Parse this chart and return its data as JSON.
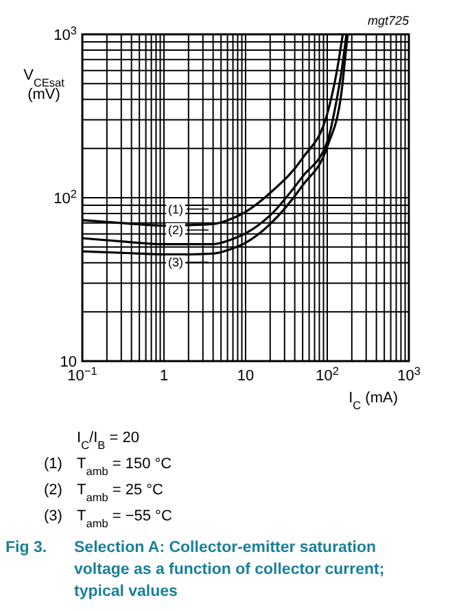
{
  "chart_data": {
    "type": "line",
    "title": "Fig 3.  Selection A: Collector-emitter saturation voltage as a function of collector current; typical values",
    "xlabel": "I$_{C}$ (mA)",
    "ylabel": "V$_{CEsat}$ (mV)",
    "log": "xy",
    "grid": true,
    "legend": "left",
    "xlim": [
      0.1,
      1000
    ],
    "ylim": [
      10,
      1000
    ],
    "xticks": [
      {
        "value": 0.1,
        "label": "10$^{−1}$"
      },
      1,
      10,
      {
        "value": 100,
        "label": "10$^{2}$"
      },
      {
        "value": 1000,
        "label": "10$^{3}$"
      }
    ],
    "yticks": [
      10,
      {
        "value": 100,
        "label": "10$^{2}$"
      },
      {
        "value": 1000,
        "label": "10$^{3}$"
      }
    ],
    "series": [
      {
        "name": "(1)",
        "color": "#000000",
        "x": [
          0.1,
          0.3,
          1,
          2,
          4,
          7,
          10,
          20,
          50,
          100,
          130,
          155
        ],
        "values": [
          73,
          70,
          67.5,
          68,
          69,
          75,
          82,
          107,
          175,
          326,
          580,
          1000
        ]
      },
      {
        "name": "(2)",
        "color": "#000000",
        "x": [
          0.1,
          0.3,
          1,
          2,
          4,
          7,
          10,
          20,
          50,
          100,
          130,
          150,
          172
        ],
        "values": [
          56.5,
          54,
          52,
          52,
          52,
          56,
          60.5,
          78,
          135,
          220,
          393,
          600,
          1000
        ]
      },
      {
        "name": "(3)",
        "color": "#000000",
        "x": [
          0.1,
          0.3,
          1,
          2,
          4,
          7,
          10,
          20,
          50,
          100,
          150,
          165,
          178
        ],
        "values": [
          47,
          46,
          45,
          45,
          45.5,
          49,
          53,
          69,
          119,
          205,
          447,
          700,
          1000
        ]
      }
    ],
    "annotations": [
      "mgt725",
      "I$_{C}$/I$_{B}$ = 20",
      "(1)  T$_{amb}$ = 150 °C",
      "(2)  T$_{amb}$ = 25 °C",
      "(3)  T$_{amb}$ = −55 °C"
    ]
  }
}
